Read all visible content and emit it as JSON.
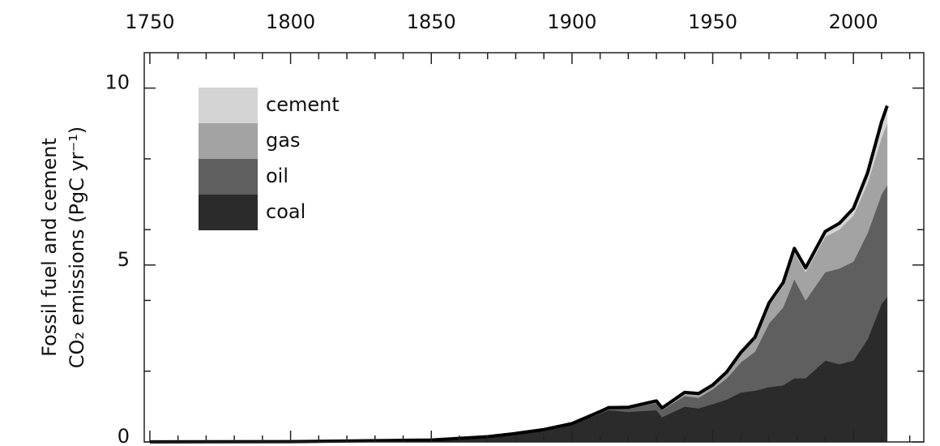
{
  "chart_data": {
    "type": "stacked_area",
    "y_label": [
      "Fossil fuel and cement",
      "CO₂ emissions (PgC yr⁻¹)"
    ],
    "x": [
      1750,
      1800,
      1850,
      1870,
      1880,
      1890,
      1900,
      1910,
      1913,
      1920,
      1930,
      1932,
      1940,
      1945,
      1950,
      1955,
      1960,
      1965,
      1970,
      1975,
      1979,
      1983,
      1990,
      1995,
      2000,
      2005,
      2010,
      2012
    ],
    "series": [
      {
        "name": "coal",
        "color": "#2b2b2b",
        "values": [
          0.003,
          0.008,
          0.054,
          0.15,
          0.24,
          0.35,
          0.5,
          0.8,
          0.9,
          0.85,
          0.9,
          0.7,
          1.0,
          0.95,
          1.07,
          1.2,
          1.4,
          1.45,
          1.55,
          1.6,
          1.8,
          1.8,
          2.3,
          2.2,
          2.3,
          2.9,
          3.9,
          4.1
        ]
      },
      {
        "name": "oil",
        "color": "#5f5f5f",
        "values": [
          0,
          0,
          0,
          0,
          0,
          0,
          0.02,
          0.04,
          0.05,
          0.1,
          0.2,
          0.2,
          0.3,
          0.3,
          0.42,
          0.6,
          0.85,
          1.1,
          1.8,
          2.2,
          2.8,
          2.2,
          2.5,
          2.7,
          2.8,
          3.0,
          3.1,
          3.15
        ]
      },
      {
        "name": "gas",
        "color": "#a3a3a3",
        "values": [
          0,
          0,
          0,
          0,
          0,
          0,
          0,
          0.01,
          0.01,
          0.02,
          0.05,
          0.05,
          0.08,
          0.1,
          0.1,
          0.15,
          0.24,
          0.35,
          0.5,
          0.6,
          0.75,
          0.8,
          1.0,
          1.1,
          1.3,
          1.4,
          1.6,
          1.75
        ]
      },
      {
        "name": "cement",
        "color": "#d4d4d4",
        "values": [
          0,
          0,
          0,
          0,
          0,
          0,
          0,
          0.01,
          0.01,
          0.01,
          0.01,
          0.01,
          0.02,
          0.02,
          0.02,
          0.03,
          0.04,
          0.06,
          0.08,
          0.1,
          0.12,
          0.12,
          0.15,
          0.18,
          0.2,
          0.3,
          0.45,
          0.5
        ]
      }
    ],
    "xlim": [
      1748,
      2025
    ],
    "xticks": [
      1750,
      1800,
      1850,
      1900,
      1950,
      2000
    ],
    "xminor_ticks": [
      1760,
      1770,
      1780,
      1790,
      1810,
      1820,
      1830,
      1840,
      1860,
      1870,
      1880,
      1890,
      1910,
      1920,
      1930,
      1940,
      1960,
      1970,
      1980,
      1990,
      2010,
      2020
    ],
    "ylim": [
      0,
      11
    ],
    "yticks": [
      0,
      5,
      10
    ],
    "yminor_ticks": [
      2,
      4,
      6,
      8
    ],
    "total_line_color": "#000000"
  }
}
